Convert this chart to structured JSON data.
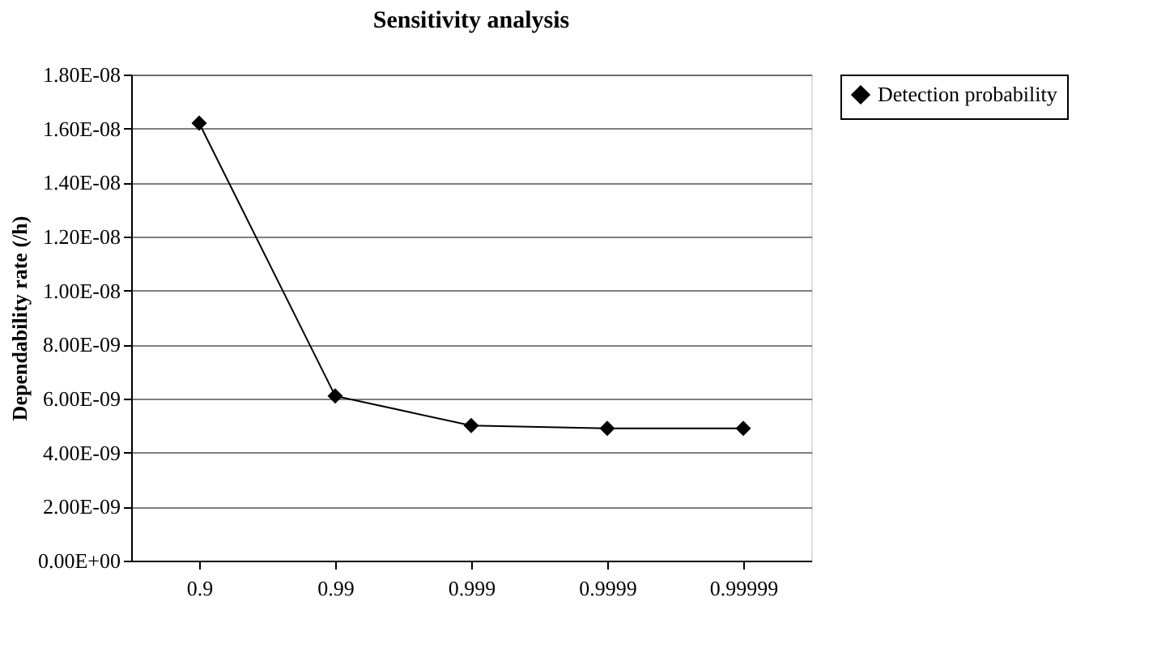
{
  "chart_data": {
    "type": "line",
    "title": "Sensitivity analysis",
    "ylabel": "Dependability rate (/h)",
    "categories": [
      "0.9",
      "0.99",
      "0.999",
      "0.9999",
      "0.99999"
    ],
    "series": [
      {
        "name": "Detection probability",
        "color": "#000000",
        "values": [
          1.62e-08,
          6.1e-09,
          5e-09,
          4.9e-09,
          4.9e-09
        ]
      }
    ],
    "ylim": [
      0,
      1.8e-08
    ],
    "yticks": [
      {
        "value": 0,
        "label": "0.00E+00"
      },
      {
        "value": 2e-09,
        "label": "2.00E-09"
      },
      {
        "value": 4e-09,
        "label": "4.00E-09"
      },
      {
        "value": 6e-09,
        "label": "6.00E-09"
      },
      {
        "value": 8e-09,
        "label": "8.00E-09"
      },
      {
        "value": 1e-08,
        "label": "1.00E-08"
      },
      {
        "value": 1.2e-08,
        "label": "1.20E-08"
      },
      {
        "value": 1.4e-08,
        "label": "1.40E-08"
      },
      {
        "value": 1.6e-08,
        "label": "1.60E-08"
      },
      {
        "value": 1.8e-08,
        "label": "1.80E-08"
      }
    ],
    "grid": "y",
    "legend": "right",
    "marker": "diamond",
    "line_style": "solid"
  }
}
